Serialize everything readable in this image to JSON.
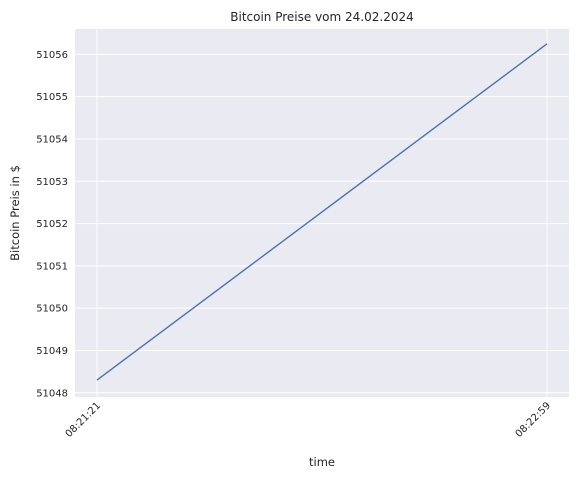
{
  "chart_data": {
    "type": "line",
    "title": "Bitcoin Preise vom 24.02.2024",
    "xlabel": "time",
    "ylabel": "Bitcoin Preis in $",
    "x_ticks": [
      "08:21:21",
      "08:22:59"
    ],
    "y_ticks": [
      51048,
      51049,
      51050,
      51051,
      51052,
      51053,
      51054,
      51055,
      51056
    ],
    "ylim": [
      51047.9,
      51056.6
    ],
    "grid": true,
    "background": "#eaeaf2",
    "line_color": "#4c72b0",
    "series": [
      {
        "x": [
          "08:21:21",
          "08:22:59"
        ],
        "values": [
          51048.3,
          51056.25
        ]
      }
    ]
  }
}
